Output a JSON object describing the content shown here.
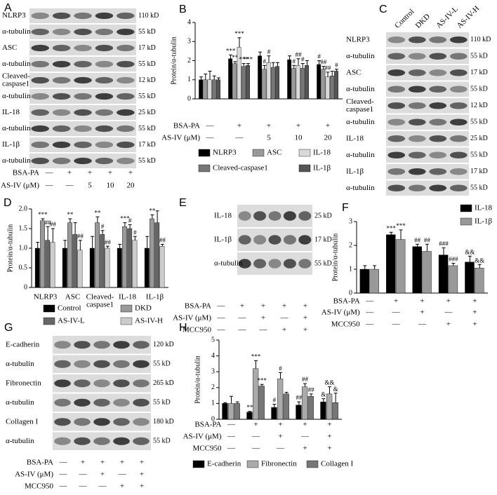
{
  "chart_data": [
    {
      "type": "bar",
      "label": "B",
      "ylabel": "Protein/α-tubulin",
      "ylim": [
        0,
        4
      ],
      "yticks": [
        0,
        1,
        2,
        3,
        4
      ],
      "series": [
        {
          "name": "NLRP3",
          "color": "#000000",
          "values": [
            1.0,
            2.1,
            2.25,
            2.05,
            1.8
          ],
          "errors": [
            0.15,
            0.2,
            0.2,
            0.2,
            0.2
          ],
          "annotations": [
            null,
            "***",
            null,
            null,
            "#"
          ]
        },
        {
          "name": "ASC",
          "color": "#999999",
          "values": [
            1.0,
            1.85,
            1.55,
            1.6,
            1.55
          ],
          "errors": [
            0.3,
            0.1,
            0.2,
            0.15,
            0.15
          ],
          "annotations": [
            null,
            "**",
            "#",
            "#",
            "##"
          ]
        },
        {
          "name": "IL-18",
          "color": "#d9d9d9",
          "values": [
            1.0,
            2.7,
            1.9,
            1.75,
            1.15
          ],
          "errors": [
            0.45,
            0.5,
            0.35,
            0.35,
            0.25
          ],
          "annotations": [
            null,
            "***",
            "#",
            "##",
            "##"
          ]
        },
        {
          "name": "Cleaved-caspase1",
          "color": "#777777",
          "values": [
            1.0,
            1.7,
            1.65,
            1.6,
            1.2
          ],
          "errors": [
            0.2,
            0.15,
            0.25,
            0.25,
            0.25
          ],
          "annotations": [
            null,
            "***",
            null,
            "#",
            null
          ]
        },
        {
          "name": "IL-1β",
          "color": "#555555",
          "values": [
            1.0,
            1.75,
            1.7,
            1.75,
            1.45
          ],
          "errors": [
            0.1,
            0.1,
            0.2,
            0.25,
            0.1
          ],
          "annotations": [
            null,
            "***",
            null,
            null,
            "#"
          ]
        }
      ],
      "treatments": [
        {
          "label": "BSA-PA",
          "values": [
            "—",
            "+",
            "+",
            "+",
            "+"
          ]
        },
        {
          "label": "AS-IV (μM)",
          "values": [
            "—",
            "—",
            "5",
            "10",
            "20"
          ]
        }
      ]
    },
    {
      "type": "bar",
      "label": "D",
      "ylabel": "Protein/α-tubulin",
      "ylim": [
        0,
        2
      ],
      "yticks": [
        0,
        0.5,
        {
          "value": 1,
          "label": "1.0"
        },
        1.5,
        {
          "value": 2,
          "label": "2.0"
        }
      ],
      "categories": [
        "NLRP3",
        "ASC",
        [
          "Cleaved-",
          "caspase1"
        ],
        "IL-18",
        "IL-1β"
      ],
      "series": [
        {
          "name": "Control",
          "color": "#000000",
          "values": [
            1.0,
            1.0,
            1.0,
            1.0,
            1.0
          ],
          "errors": [
            0.15,
            0.2,
            0.3,
            0.1,
            0.3
          ],
          "annotations": [
            null,
            null,
            null,
            null,
            null
          ]
        },
        {
          "name": "DKD",
          "color": "#999999",
          "values": [
            1.7,
            1.65,
            1.65,
            1.55,
            1.75
          ],
          "errors": [
            0.05,
            0.1,
            0.15,
            0.1,
            0.1
          ],
          "annotations": [
            "***",
            "**",
            "**",
            "***",
            "**"
          ]
        },
        {
          "name": "AS-IV-L",
          "color": "#666666",
          "values": [
            1.2,
            1.35,
            1.35,
            1.5,
            1.65
          ],
          "errors": [
            0.35,
            0.3,
            0.1,
            0.1,
            0.3
          ],
          "annotations": [
            "##",
            null,
            "#",
            "#",
            null
          ]
        },
        {
          "name": "AS-IV-H",
          "color": "#cccccc",
          "values": [
            1.15,
            0.95,
            1.0,
            1.2,
            1.05
          ],
          "errors": [
            0.35,
            0.25,
            0.05,
            0.1,
            0.05
          ],
          "annotations": [
            "##",
            "##",
            "##",
            "#",
            "##"
          ]
        }
      ]
    },
    {
      "type": "bar",
      "label": "F",
      "ylabel": "Protein/α-tubulin",
      "ylim": [
        0,
        3
      ],
      "yticks": [
        0,
        1,
        2,
        3
      ],
      "series": [
        {
          "name": "IL-18",
          "color": "#000000",
          "values": [
            1.0,
            2.45,
            1.95,
            1.6,
            1.3
          ],
          "errors": [
            0.15,
            0.1,
            0.1,
            0.3,
            0.25
          ],
          "annotations": [
            null,
            "***",
            "##",
            "###",
            "&&"
          ]
        },
        {
          "name": "IL-1β",
          "color": "#999999",
          "values": [
            1.0,
            2.25,
            1.75,
            1.15,
            1.05
          ],
          "errors": [
            0.15,
            0.4,
            0.3,
            0.1,
            0.15
          ],
          "annotations": [
            null,
            "***",
            "##",
            "###",
            "&&"
          ]
        }
      ],
      "treatments": [
        {
          "label": "BSA-PA",
          "values": [
            "—",
            "+",
            "+",
            "+",
            "+"
          ]
        },
        {
          "label": "AS-IV (μM)",
          "values": [
            "—",
            "—",
            "+",
            "—",
            "+"
          ]
        },
        {
          "label": "MCC950",
          "values": [
            "—",
            "—",
            "—",
            "+",
            "+"
          ]
        }
      ]
    },
    {
      "type": "bar",
      "label": "H",
      "ylabel": "Protein/α-tubulin",
      "ylim": [
        0,
        5
      ],
      "yticks": [
        0,
        1,
        2,
        3,
        4,
        5
      ],
      "series": [
        {
          "name": "E-cadherin",
          "color": "#000000",
          "values": [
            1.0,
            0.45,
            0.75,
            0.9,
            1.1
          ],
          "errors": [
            0.05,
            0.05,
            0.2,
            0.2,
            0.2
          ],
          "annotations": [
            null,
            "**",
            "#",
            "##",
            "&"
          ]
        },
        {
          "name": "Fibronectin",
          "color": "#aaaaaa",
          "values": [
            1.0,
            3.2,
            2.55,
            2.05,
            1.6
          ],
          "errors": [
            0.45,
            0.5,
            0.4,
            0.2,
            0.45
          ],
          "annotations": [
            null,
            "***",
            "#",
            "##",
            "&&"
          ]
        },
        {
          "name": "Collagen I",
          "color": "#777777",
          "values": [
            1.0,
            2.1,
            1.6,
            1.45,
            1.05
          ],
          "errors": [
            0.1,
            0.1,
            0.1,
            0.15,
            0.6
          ],
          "annotations": [
            null,
            "***",
            null,
            "##",
            "&"
          ]
        }
      ],
      "treatments": [
        {
          "label": "BSA-PA",
          "values": [
            "—",
            "+",
            "+",
            "+",
            "+"
          ]
        },
        {
          "label": "AS-IV (μM)",
          "values": [
            "—",
            "—",
            "+",
            "—",
            "+"
          ]
        },
        {
          "label": "MCC950",
          "values": [
            "—",
            "—",
            "—",
            "+",
            "+"
          ]
        }
      ]
    }
  ],
  "blots": [
    {
      "label": "A",
      "rows": [
        {
          "name": "NLRP3",
          "kd": "110 kD"
        },
        {
          "name": "α-tubulin",
          "kd": "55 kD"
        },
        {
          "name": "ASC",
          "kd": "17 kD"
        },
        {
          "name": "α-tubulin",
          "kd": "55 kD"
        },
        {
          "name": [
            "Cleaved-",
            "caspase1"
          ],
          "kd": "12 kD"
        },
        {
          "name": "α-tubulin",
          "kd": "55 kD"
        },
        {
          "name": "IL-18",
          "kd": "25 kD"
        },
        {
          "name": "α-tubulin",
          "kd": "55 kD"
        },
        {
          "name": "IL-1β",
          "kd": "17 kD"
        },
        {
          "name": "α-tubulin",
          "kd": "55 kD"
        }
      ],
      "treatments": [
        {
          "label": "BSA-PA",
          "values": [
            "—",
            "+",
            "+",
            "+",
            "+"
          ]
        },
        {
          "label": "AS-IV (μM)",
          "values": [
            "—",
            "—",
            "5",
            "10",
            "20"
          ]
        }
      ]
    },
    {
      "label": "C",
      "columns": [
        "Control",
        "DKD",
        "AS-IV-L",
        "AS-IV-H"
      ],
      "rows": [
        {
          "name": "NLRP3",
          "kd": "110 kD"
        },
        {
          "name": "α-tubulin",
          "kd": "55 kD"
        },
        {
          "name": "ASC",
          "kd": "17 kD"
        },
        {
          "name": "α-tubulin",
          "kd": "55 kD"
        },
        {
          "name": [
            "Cleaved-",
            "caspase1"
          ],
          "kd": "12 kD"
        },
        {
          "name": "α-tubulin",
          "kd": "55 kD"
        },
        {
          "name": "IL-18",
          "kd": "25 kD"
        },
        {
          "name": "α-tubulin",
          "kd": "55 kD"
        },
        {
          "name": "IL-1β",
          "kd": "17 kD"
        },
        {
          "name": "α-tubulin",
          "kd": "55 kD"
        }
      ]
    },
    {
      "label": "E",
      "rows": [
        {
          "name": "IL-18",
          "kd": "25 kD"
        },
        {
          "name": "IL-1β",
          "kd": "17 kD"
        },
        {
          "name": "α-tubulin",
          "kd": "55 kD"
        }
      ],
      "treatments": [
        {
          "label": "BSA-PA",
          "values": [
            "—",
            "+",
            "+",
            "+",
            "+"
          ]
        },
        {
          "label": "AS-IV (μM)",
          "values": [
            "—",
            "—",
            "+",
            "—",
            "+"
          ]
        },
        {
          "label": "MCC950",
          "values": [
            "—",
            "—",
            "—",
            "+",
            "+"
          ]
        }
      ]
    },
    {
      "label": "G",
      "rows": [
        {
          "name": "E-cadherin",
          "kd": "120 kD"
        },
        {
          "name": "α-tubulin",
          "kd": "55 kD"
        },
        {
          "name": "Fibronectin",
          "kd": "265 kD"
        },
        {
          "name": "α-tubulin",
          "kd": "55 kD"
        },
        {
          "name": "Collagen I",
          "kd": "180 kD"
        },
        {
          "name": "α-tubulin",
          "kd": "55 kD"
        }
      ],
      "treatments": [
        {
          "label": "BSA-PA",
          "values": [
            "—",
            "+",
            "+",
            "+",
            "+"
          ]
        },
        {
          "label": "AS-IV (μM)",
          "values": [
            "—",
            "—",
            "+",
            "—",
            "+"
          ]
        },
        {
          "label": "MCC950",
          "values": [
            "—",
            "—",
            "—",
            "+",
            "+"
          ]
        }
      ]
    }
  ]
}
